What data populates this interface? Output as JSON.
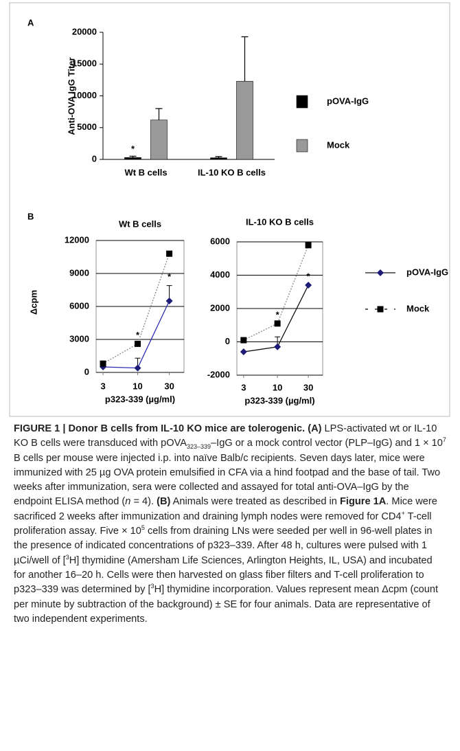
{
  "chart_data": [
    {
      "type": "bar",
      "panel_label": "A",
      "ylabel": "Anti-OVA  IgG Titer",
      "categories": [
        "Wt B cells",
        "IL-10 KO B cells"
      ],
      "series": [
        {
          "name": "pOVA-IgG",
          "color": "#000000",
          "values": [
            300,
            250
          ],
          "errors": [
            200,
            200
          ],
          "significance": [
            "*",
            null
          ]
        },
        {
          "name": "Mock",
          "color": "#9a9a9a",
          "values": [
            6200,
            12300
          ],
          "errors": [
            1800,
            7000
          ],
          "significance": [
            null,
            null
          ]
        }
      ],
      "ylim": [
        0,
        20000
      ],
      "yticks": [
        0,
        5000,
        10000,
        15000,
        20000
      ]
    },
    {
      "type": "line",
      "panel_label": "B",
      "title": "Wt B cells",
      "ylabel": "Δcpm",
      "xlabel": "p323-339 (µg/ml)",
      "x": [
        3,
        10,
        30
      ],
      "xscale": "log",
      "xlim": [
        2.36,
        50
      ],
      "xticks": [
        3,
        10,
        30
      ],
      "ylim": [
        0,
        12000
      ],
      "yticks": [
        0,
        3000,
        6000,
        9000,
        12000
      ],
      "grid": true,
      "series": [
        {
          "name": "pOVA-IgG",
          "color": "#1c1c78",
          "line_color": "#2b2bb0",
          "line_style": "solid",
          "marker": "diamond",
          "values": [
            500,
            400,
            6500
          ],
          "errors": [
            null,
            900,
            1400
          ],
          "significance": [
            null,
            null,
            "*"
          ]
        },
        {
          "name": "Mock",
          "color": "#000000",
          "line_color": "#888888",
          "line_style": "dotted",
          "marker": "square",
          "values": [
            800,
            2600,
            10800
          ],
          "errors": [
            null,
            null,
            null
          ],
          "significance": [
            null,
            "*",
            null
          ]
        }
      ]
    },
    {
      "type": "line",
      "title": "IL-10 KO B cells",
      "xlabel": "p323-339 (µg/ml)",
      "x": [
        3,
        10,
        30
      ],
      "xscale": "log",
      "xlim": [
        2.36,
        50
      ],
      "xticks": [
        3,
        10,
        30
      ],
      "ylim": [
        -2000,
        6000
      ],
      "yticks": [
        -2000,
        0,
        2000,
        4000,
        6000
      ],
      "grid": true,
      "legend": "right",
      "series": [
        {
          "name": "pOVA-IgG",
          "color": "#1c1c78",
          "line_color": "#111111",
          "line_style": "solid",
          "marker": "diamond",
          "values": [
            -600,
            -300,
            3400
          ],
          "errors": [
            null,
            600,
            null
          ],
          "significance": [
            null,
            null,
            "*"
          ]
        },
        {
          "name": "Mock",
          "color": "#000000",
          "line_color": "#888888",
          "line_style": "dotted",
          "marker": "square",
          "values": [
            100,
            1100,
            5800
          ],
          "errors": [
            null,
            null,
            null
          ],
          "significance": [
            null,
            "*",
            null
          ]
        }
      ]
    }
  ],
  "caption": [
    {
      "text": "FIGURE 1 | Donor B cells from IL-10 KO mice are tolerogenic. (A)",
      "style": "b"
    },
    {
      "text": " LPS-activated wt or IL-10 KO B cells were transduced with pOVA"
    },
    {
      "text": "323–339",
      "style": "sub"
    },
    {
      "text": "–IgG or a mock control vector (PLP–IgG) and 1 × 10"
    },
    {
      "text": "7",
      "style": "sup"
    },
    {
      "text": " B cells per mouse were injected i.p. into naïve Balb/c recipients. Seven days later, mice were immunized with 25 µg OVA protein emulsified in CFA via a hind footpad and the base of tail. Two weeks after immunization, sera were collected and assayed for total anti-OVA–IgG by the endpoint ELISA method ("
    },
    {
      "text": "n",
      "style": "i"
    },
    {
      "text": " = 4). "
    },
    {
      "text": "(B)",
      "style": "b"
    },
    {
      "text": " Animals were treated as described in "
    },
    {
      "text": "Figure 1A",
      "style": "b"
    },
    {
      "text": ". Mice were sacrificed 2 weeks after immunization and draining lymph nodes were removed for CD4"
    },
    {
      "text": "+",
      "style": "sup"
    },
    {
      "text": " T-cell proliferation assay. Five × 10"
    },
    {
      "text": "5",
      "style": "sup"
    },
    {
      "text": " cells from draining LNs were seeded per well in 96-well plates in the presence of indicated concentrations of p323–339. After 48 h, cultures were pulsed with 1 µCi/well of ["
    },
    {
      "text": "3",
      "style": "sup"
    },
    {
      "text": "H] thymidine (Amersham Life Sciences, Arlington Heights, IL, USA) and incubated for another 16–20 h. Cells were then harvested on glass fiber filters and T-cell proliferation to p323–339 was determined by ["
    },
    {
      "text": "3",
      "style": "sup"
    },
    {
      "text": "H] thymidine incorporation. Values represent mean Δcpm (count per minute by subtraction of the background) ± SE for four animals. Data are representative of two independent experiments."
    }
  ]
}
